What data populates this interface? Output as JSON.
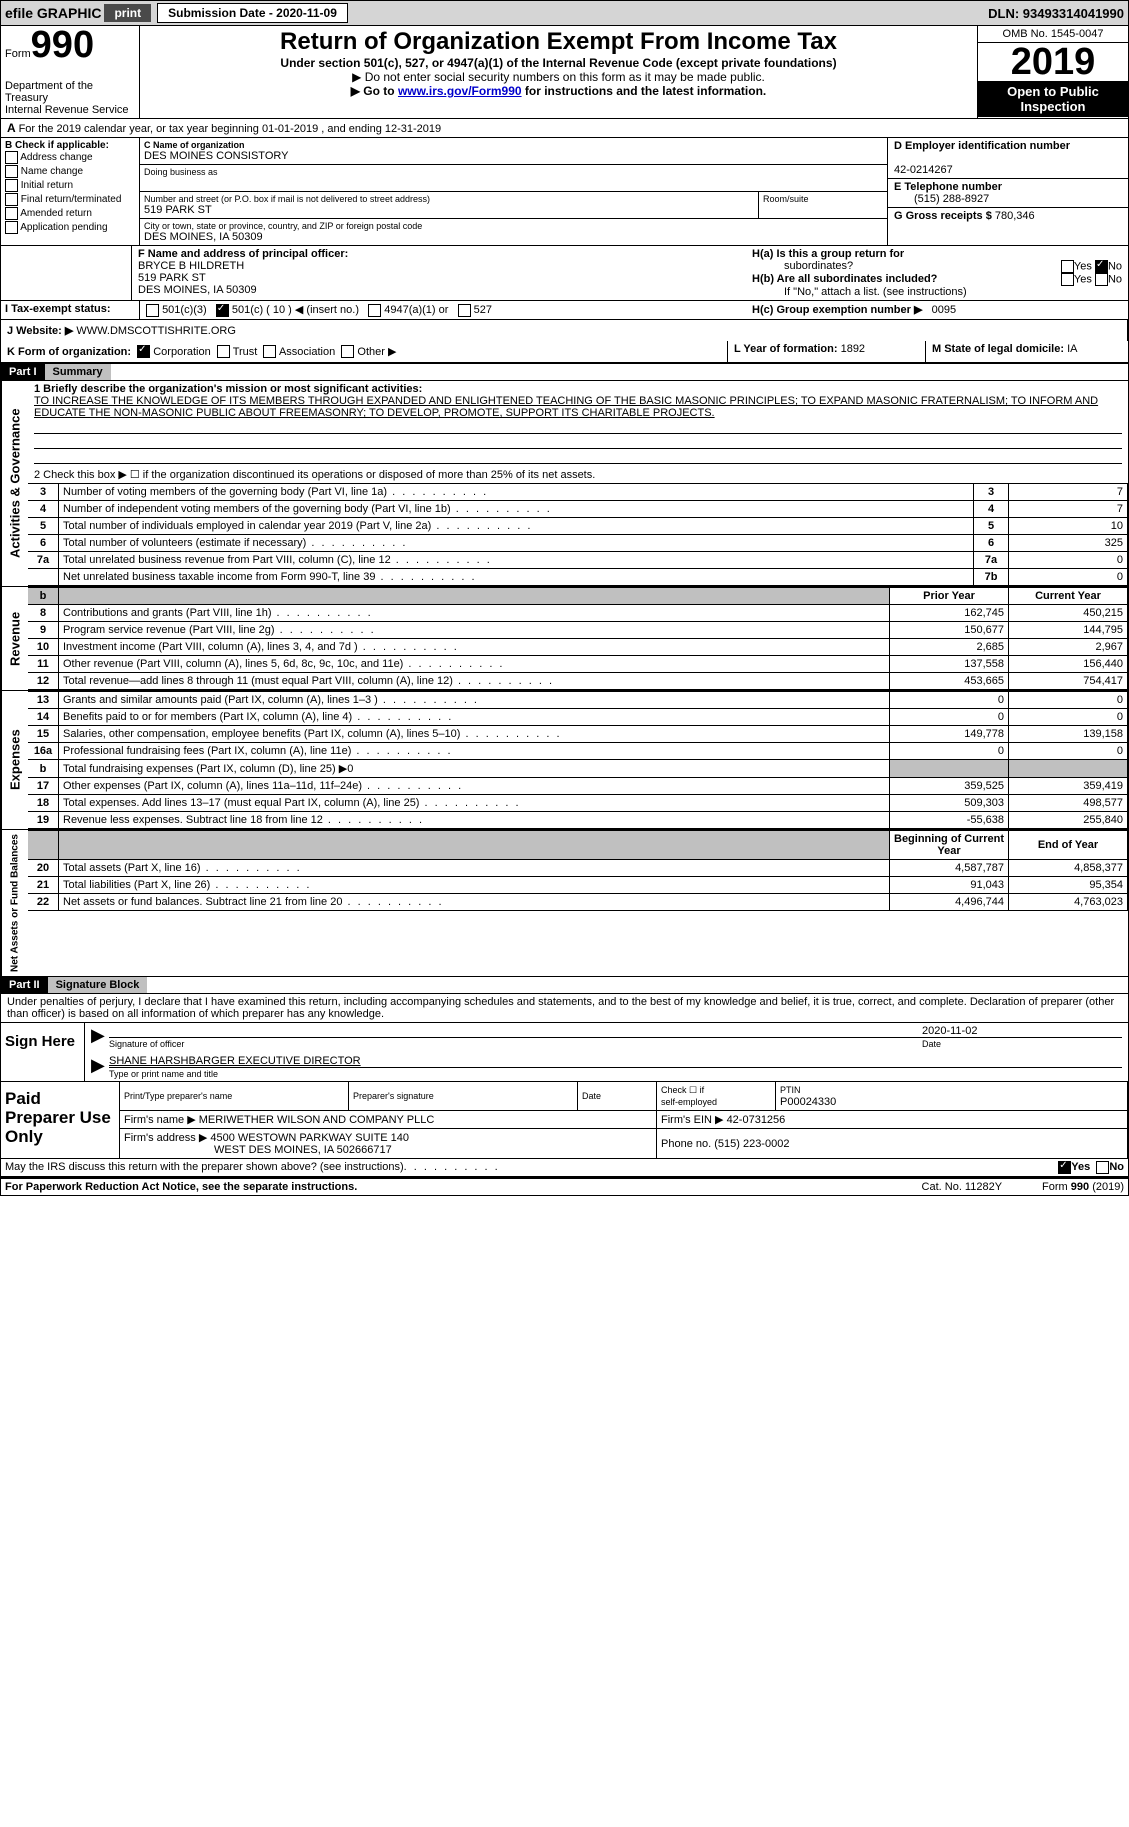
{
  "colors": {
    "topbar_bg": "#d5d5d5",
    "black": "#000000",
    "white": "#ffffff",
    "grey_cell": "#c0c0c0",
    "link": "#0000cc"
  },
  "topbar": {
    "efile_label": "efile GRAPHIC",
    "print_btn": "print",
    "submission_label": "Submission Date - 2020-11-09",
    "dln_label": "DLN: 93493314041990"
  },
  "header": {
    "form_word": "Form",
    "form_number": "990",
    "dept": "Department of the Treasury",
    "irs": "Internal Revenue Service",
    "title": "Return of Organization Exempt From Income Tax",
    "subtitle": "Under section 501(c), 527, or 4947(a)(1) of the Internal Revenue Code (except private foundations)",
    "note1": "▶ Do not enter social security numbers on this form as it may be made public.",
    "note2_prefix": "▶ Go to ",
    "note2_link": "www.irs.gov/Form990",
    "note2_suffix": " for instructions and the latest information.",
    "omb": "OMB No. 1545-0047",
    "year": "2019",
    "inspection1": "Open to Public",
    "inspection2": "Inspection"
  },
  "period": {
    "prefix_a": "A",
    "text": "For the 2019 calendar year, or tax year beginning 01-01-2019   , and ending 12-31-2019"
  },
  "block_b": {
    "title": "B Check if applicable:",
    "items": [
      "Address change",
      "Name change",
      "Initial return",
      "Final return/terminated",
      "Amended return",
      "Application pending"
    ]
  },
  "block_c": {
    "name_label": "C Name of organization",
    "name_value": "DES MOINES CONSISTORY",
    "dba_label": "Doing business as",
    "dba_value": "",
    "street_label": "Number and street (or P.O. box if mail is not delivered to street address)",
    "street_value": "519 PARK ST",
    "room_label": "Room/suite",
    "room_value": "",
    "city_label": "City or town, state or province, country, and ZIP or foreign postal code",
    "city_value": "DES MOINES, IA  50309"
  },
  "block_d": {
    "label": "D Employer identification number",
    "value": "42-0214267"
  },
  "block_e": {
    "label": "E Telephone number",
    "value": "(515) 288-8927"
  },
  "block_g": {
    "label": "G Gross receipts $",
    "value": "780,346"
  },
  "block_f": {
    "label": "F Name and address of principal officer:",
    "name": "BRYCE B HILDRETH",
    "street": "519 PARK ST",
    "city": "DES MOINES, IA  50309"
  },
  "block_h": {
    "ha_label": "H(a)  Is this a group return for",
    "ha_sub": "subordinates?",
    "ha_yes": "Yes",
    "ha_no": "No",
    "hb_label": "H(b)  Are all subordinates included?",
    "hb_yes": "Yes",
    "hb_no": "No",
    "hb_note": "If \"No,\" attach a list. (see instructions)",
    "hc_label": "H(c)  Group exemption number ▶",
    "hc_value": "0095"
  },
  "block_i": {
    "label": "I   Tax-exempt status:",
    "opt1": "501(c)(3)",
    "opt2_left": "501(c) ( 10 ) ",
    "opt2_right": "◀ (insert no.)",
    "opt3": "4947(a)(1) or",
    "opt4": "527"
  },
  "block_j": {
    "label": "J   Website: ▶",
    "value": "WWW.DMSCOTTISHRITE.ORG"
  },
  "block_k": {
    "label": "K Form of organization:",
    "opts": [
      "Corporation",
      "Trust",
      "Association",
      "Other ▶"
    ]
  },
  "block_l": {
    "label": "L Year of formation:",
    "value": "1892"
  },
  "block_m": {
    "label": "M State of legal domicile:",
    "value": "IA"
  },
  "part1": {
    "bar_num": "Part I",
    "bar_title": "Summary",
    "side_label": "Activities & Governance",
    "line1_label": "1   Briefly describe the organization's mission or most significant activities:",
    "line1_text": "TO INCREASE THE KNOWLEDGE OF ITS MEMBERS THROUGH EXPANDED AND ENLIGHTENED TEACHING OF THE BASIC MASONIC PRINCIPLES; TO EXPAND MASONIC FRATERNALISM; TO INFORM AND EDUCATE THE NON-MASONIC PUBLIC ABOUT FREEMASONRY; TO DEVELOP, PROMOTE, SUPPORT ITS CHARITABLE PROJECTS.",
    "line2": "2   Check this box ▶ ☐  if the organization discontinued its operations or disposed of more than 25% of its net assets.",
    "rows": [
      {
        "n": "3",
        "t": "Number of voting members of the governing body (Part VI, line 1a)",
        "c": "3",
        "v": "7"
      },
      {
        "n": "4",
        "t": "Number of independent voting members of the governing body (Part VI, line 1b)",
        "c": "4",
        "v": "7"
      },
      {
        "n": "5",
        "t": "Total number of individuals employed in calendar year 2019 (Part V, line 2a)",
        "c": "5",
        "v": "10"
      },
      {
        "n": "6",
        "t": "Total number of volunteers (estimate if necessary)",
        "c": "6",
        "v": "325"
      },
      {
        "n": "7a",
        "t": "Total unrelated business revenue from Part VIII, column (C), line 12",
        "c": "7a",
        "v": "0"
      },
      {
        "n": "",
        "t": "Net unrelated business taxable income from Form 990-T, line 39",
        "c": "7b",
        "v": "0"
      }
    ]
  },
  "part1_rev": {
    "side_label": "Revenue",
    "header_prior": "Prior Year",
    "header_current": "Current Year",
    "b_label": "b",
    "rows": [
      {
        "n": "8",
        "t": "Contributions and grants (Part VIII, line 1h)",
        "p": "162,745",
        "c": "450,215"
      },
      {
        "n": "9",
        "t": "Program service revenue (Part VIII, line 2g)",
        "p": "150,677",
        "c": "144,795"
      },
      {
        "n": "10",
        "t": "Investment income (Part VIII, column (A), lines 3, 4, and 7d )",
        "p": "2,685",
        "c": "2,967"
      },
      {
        "n": "11",
        "t": "Other revenue (Part VIII, column (A), lines 5, 6d, 8c, 9c, 10c, and 11e)",
        "p": "137,558",
        "c": "156,440"
      },
      {
        "n": "12",
        "t": "Total revenue—add lines 8 through 11 (must equal Part VIII, column (A), line 12)",
        "p": "453,665",
        "c": "754,417"
      }
    ]
  },
  "part1_exp": {
    "side_label": "Expenses",
    "rows": [
      {
        "n": "13",
        "t": "Grants and similar amounts paid (Part IX, column (A), lines 1–3 )",
        "p": "0",
        "c": "0"
      },
      {
        "n": "14",
        "t": "Benefits paid to or for members (Part IX, column (A), line 4)",
        "p": "0",
        "c": "0"
      },
      {
        "n": "15",
        "t": "Salaries, other compensation, employee benefits (Part IX, column (A), lines 5–10)",
        "p": "149,778",
        "c": "139,158"
      },
      {
        "n": "16a",
        "t": "Professional fundraising fees (Part IX, column (A), line 11e)",
        "p": "0",
        "c": "0"
      },
      {
        "n": "b",
        "t": "Total fundraising expenses (Part IX, column (D), line 25) ▶0",
        "p": "GREY",
        "c": "GREY"
      },
      {
        "n": "17",
        "t": "Other expenses (Part IX, column (A), lines 11a–11d, 11f–24e)",
        "p": "359,525",
        "c": "359,419"
      },
      {
        "n": "18",
        "t": "Total expenses. Add lines 13–17 (must equal Part IX, column (A), line 25)",
        "p": "509,303",
        "c": "498,577"
      },
      {
        "n": "19",
        "t": "Revenue less expenses. Subtract line 18 from line 12",
        "p": "-55,638",
        "c": "255,840"
      }
    ]
  },
  "part1_bal": {
    "side_label": "Net Assets or Fund Balances",
    "header_begin": "Beginning of Current Year",
    "header_end": "End of Year",
    "rows": [
      {
        "n": "20",
        "t": "Total assets (Part X, line 16)",
        "p": "4,587,787",
        "c": "4,858,377"
      },
      {
        "n": "21",
        "t": "Total liabilities (Part X, line 26)",
        "p": "91,043",
        "c": "95,354"
      },
      {
        "n": "22",
        "t": "Net assets or fund balances. Subtract line 21 from line 20",
        "p": "4,496,744",
        "c": "4,763,023"
      }
    ]
  },
  "part2": {
    "bar_num": "Part II",
    "bar_title": "Signature Block",
    "declaration": "Under penalties of perjury, I declare that I have examined this return, including accompanying schedules and statements, and to the best of my knowledge and belief, it is true, correct, and complete. Declaration of preparer (other than officer) is based on all information of which preparer has any knowledge.",
    "sign_here": "Sign Here",
    "sig_officer_label": "Signature of officer",
    "date_label": "Date",
    "date_value": "2020-11-02",
    "officer_name": "SHANE HARSHBARGER  EXECUTIVE DIRECTOR",
    "type_label": "Type or print name and title"
  },
  "paid": {
    "title": "Paid Preparer Use Only",
    "row1": {
      "c1_label": "Print/Type preparer's name",
      "c1_value": "",
      "c2_label": "Preparer's signature",
      "c2_value": "",
      "c3_label": "Date",
      "c3_value": "",
      "c4_label_top": "Check ☐ if",
      "c4_label_bot": "self-employed",
      "c5_label": "PTIN",
      "c5_value": "P00024330"
    },
    "row2": {
      "label": "Firm's name    ▶",
      "value": "MERIWETHER WILSON AND COMPANY PLLC",
      "ein_label": "Firm's EIN ▶",
      "ein_value": "42-0731256"
    },
    "row3": {
      "label": "Firm's address ▶",
      "value1": "4500 WESTOWN PARKWAY SUITE 140",
      "value2": "WEST DES MOINES, IA  502666717",
      "phone_label": "Phone no.",
      "phone_value": "(515) 223-0002"
    }
  },
  "discuss": {
    "text": "May the IRS discuss this return with the preparer shown above? (see instructions)",
    "yes": "Yes",
    "no": "No"
  },
  "footer": {
    "left": "For Paperwork Reduction Act Notice, see the separate instructions.",
    "mid": "Cat. No. 11282Y",
    "right": "Form 990 (2019)"
  }
}
